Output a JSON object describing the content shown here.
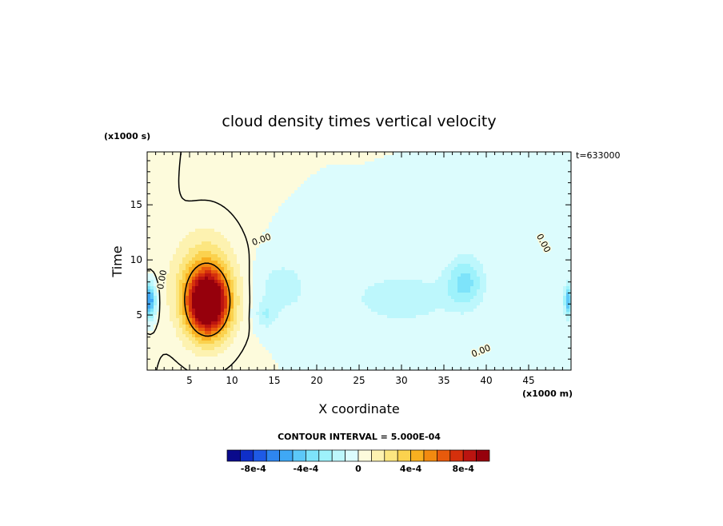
{
  "chart_data": {
    "type": "heatmap",
    "title": "cloud density times vertical velocity",
    "xlabel": "X coordinate",
    "ylabel": "Time",
    "x_units": "(x1000 m)",
    "y_units": "(x1000 s)",
    "time_stamp": "t=633000",
    "xlim": [
      0,
      50
    ],
    "ylim": [
      0,
      19.8
    ],
    "x_ticks": [
      5,
      10,
      15,
      20,
      25,
      30,
      35,
      40,
      45
    ],
    "y_ticks": [
      5,
      10,
      15
    ],
    "contour_labels": [
      {
        "text": "0.00",
        "x": 1.8,
        "y": 8.2,
        "angle": -80
      },
      {
        "text": "0.00",
        "x": 13.5,
        "y": 11.8,
        "angle": -20
      },
      {
        "text": "0.00",
        "x": 46.7,
        "y": 11.5,
        "angle": 62
      },
      {
        "text": "0.00",
        "x": 39.4,
        "y": 1.7,
        "angle": -22
      }
    ],
    "contour_interval": "CONTOUR INTERVAL = 5.000E-04",
    "colorbar": {
      "levels": [
        -0.001,
        -0.0009,
        -0.0008,
        -0.0007,
        -0.0006,
        -0.0005,
        -0.0004,
        -0.0003,
        -0.0002,
        -0.0001,
        0,
        0.0001,
        0.0002,
        0.0003,
        0.0004,
        0.0005,
        0.0006,
        0.0007,
        0.0008,
        0.0009,
        0.001
      ],
      "colors": [
        "#0a0a8c",
        "#0f2fc8",
        "#1e5ae6",
        "#2e86f0",
        "#3fa8f5",
        "#5cc8f8",
        "#7de3fa",
        "#9ef2fb",
        "#bdf7fc",
        "#dcfcfd",
        "#fdfbdc",
        "#fdf2b0",
        "#fce680",
        "#fbd24e",
        "#f8b020",
        "#f28a10",
        "#e85a0c",
        "#d5300c",
        "#bb1410",
        "#96000c"
      ],
      "tick_labels": [
        {
          "value": -0.0008,
          "text": "-8e-4"
        },
        {
          "value": -0.0004,
          "text": "-4e-4"
        },
        {
          "value": 0,
          "text": "0"
        },
        {
          "value": 0.0004,
          "text": "4e-4"
        },
        {
          "value": 0.0008,
          "text": "8e-4"
        }
      ]
    },
    "features": [
      {
        "x": 7.2,
        "y": 6.0,
        "sx": 2.4,
        "sy": 2.8,
        "amp": 0.00105
      },
      {
        "x": 6.8,
        "y": 7.6,
        "sx": 3.4,
        "sy": 4.5,
        "amp": 0.0004
      },
      {
        "x": 0.3,
        "y": 6.3,
        "sx": 0.7,
        "sy": 1.6,
        "amp": -0.00065
      },
      {
        "x": 49.7,
        "y": 6.3,
        "sx": 0.5,
        "sy": 1.4,
        "amp": -0.0005
      },
      {
        "x": 37.5,
        "y": 8.0,
        "sx": 2.2,
        "sy": 2.3,
        "amp": -0.00033
      },
      {
        "x": 30.0,
        "y": 6.5,
        "sx": 6.0,
        "sy": 2.3,
        "amp": -0.00018
      },
      {
        "x": 16.0,
        "y": 7.5,
        "sx": 3.0,
        "sy": 2.5,
        "amp": -0.00016
      },
      {
        "x": 14.0,
        "y": 5.0,
        "sx": 1.2,
        "sy": 1.2,
        "amp": -0.00018
      }
    ]
  }
}
